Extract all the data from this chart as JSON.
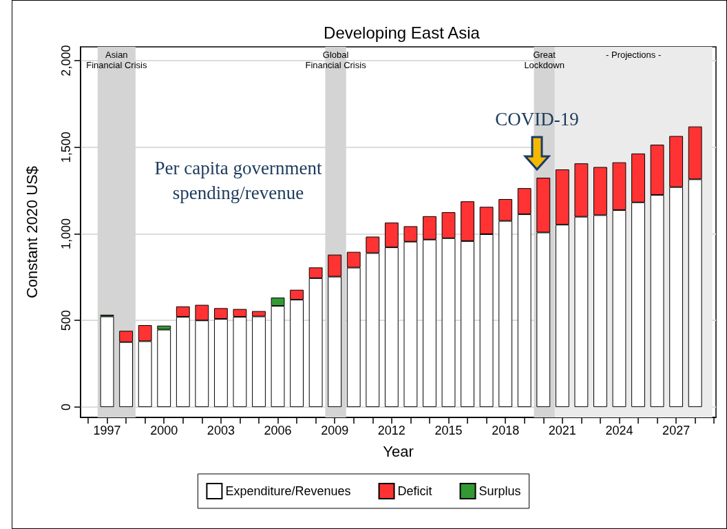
{
  "chart_data": {
    "type": "bar",
    "title": "Developing East Asia",
    "xlabel": "Year",
    "ylabel": "Constant 2020 US$",
    "x": [
      1997,
      1998,
      1999,
      2000,
      2001,
      2002,
      2003,
      2004,
      2005,
      2006,
      2007,
      2008,
      2009,
      2010,
      2011,
      2012,
      2013,
      2014,
      2015,
      2016,
      2017,
      2018,
      2019,
      2020,
      2021,
      2022,
      2023,
      2024,
      2025,
      2026,
      2027,
      2028
    ],
    "stacked": true,
    "series": [
      {
        "name": "Expenditure/Revenues",
        "color": "#ffffff",
        "values": [
          523,
          375,
          380,
          447,
          521,
          500,
          509,
          521,
          523,
          584,
          620,
          744,
          753,
          805,
          889,
          922,
          955,
          967,
          975,
          958,
          998,
          1075,
          1113,
          1008,
          1053,
          1099,
          1108,
          1137,
          1182,
          1225,
          1270,
          1315
        ]
      },
      {
        "name": "Deficit",
        "color": "#ff3333",
        "values": [
          null,
          65,
          93,
          null,
          60,
          90,
          62,
          45,
          31,
          null,
          57,
          62,
          127,
          91,
          95,
          143,
          89,
          135,
          150,
          230,
          158,
          126,
          151,
          316,
          319,
          308,
          278,
          276,
          282,
          290,
          295,
          305
        ]
      },
      {
        "name": "Surplus",
        "color": "#339933",
        "values": [
          10,
          null,
          null,
          23,
          null,
          null,
          null,
          null,
          null,
          48,
          null,
          null,
          null,
          null,
          null,
          null,
          null,
          null,
          null,
          null,
          null,
          null,
          null,
          null,
          null,
          null,
          null,
          null,
          null,
          null,
          null,
          null
        ]
      }
    ],
    "xlim": [
      1995.6,
      2029.1
    ],
    "xticks": [
      {
        "value": 1996,
        "label": null
      },
      1997,
      {
        "value": 1998,
        "label": null
      },
      {
        "value": 1999,
        "label": null
      },
      2000,
      {
        "value": 2001,
        "label": null
      },
      {
        "value": 2002,
        "label": null
      },
      2003,
      {
        "value": 2004,
        "label": null
      },
      {
        "value": 2005,
        "label": null
      },
      2006,
      {
        "value": 2007,
        "label": null
      },
      {
        "value": 2008,
        "label": null
      },
      2009,
      {
        "value": 2010,
        "label": null
      },
      {
        "value": 2011,
        "label": null
      },
      2012,
      {
        "value": 2013,
        "label": null
      },
      {
        "value": 2014,
        "label": null
      },
      2015,
      {
        "value": 2016,
        "label": null
      },
      {
        "value": 2017,
        "label": null
      },
      2018,
      {
        "value": 2019,
        "label": null
      },
      {
        "value": 2020,
        "label": null
      },
      2021,
      {
        "value": 2022,
        "label": null
      },
      {
        "value": 2023,
        "label": null
      },
      2024,
      {
        "value": 2025,
        "label": null
      },
      {
        "value": 2026,
        "label": null
      },
      2027,
      {
        "value": 2028,
        "label": null
      },
      {
        "value": 2029,
        "label": null
      }
    ],
    "ylim": [
      -60,
      2080
    ],
    "yticks": [
      0,
      500,
      {
        "value": 1000,
        "label": "1,000"
      },
      {
        "value": 1500,
        "label": "1,500"
      },
      {
        "value": 2000,
        "label": "2,000"
      }
    ],
    "grid": "y",
    "legend": "bottom",
    "bands": [
      {
        "axis": "x",
        "from": 1996.5,
        "to": 1998.5,
        "label": "Asian\nFinancial Crisis",
        "color": "#d4d4d4"
      },
      {
        "axis": "x",
        "from": 2008.5,
        "to": 2009.6,
        "label": "Global\nFinancial Crisis",
        "color": "#d4d4d4"
      },
      {
        "axis": "x",
        "from": 2019.5,
        "to": 2020.6,
        "label": "Great\nLockdown",
        "color": "#d4d4d4"
      },
      {
        "axis": "x",
        "from": 2020.6,
        "to": 2028.9,
        "label": "- Projections -",
        "color": "#ebebeb"
      }
    ],
    "annotations": [
      "Per capita government spending/revenue",
      "COVID-19"
    ]
  }
}
